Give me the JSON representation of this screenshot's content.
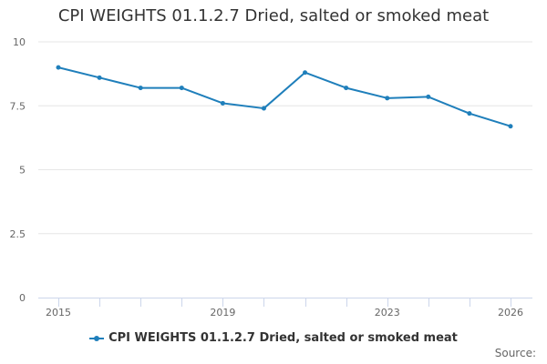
{
  "colors": {
    "series": "#1f7fbb",
    "grid": "#e6e6e6",
    "axis": "#ccd6eb"
  },
  "credits": {
    "label": "Source:"
  },
  "chart_data": {
    "type": "line",
    "title": "CPI WEIGHTS 01.1.2.7 Dried, salted or smoked meat",
    "xlabel": "",
    "ylabel": "",
    "x": [
      2015,
      2016,
      2017,
      2018,
      2019,
      2020,
      2021,
      2022,
      2023,
      2024,
      2025,
      2026
    ],
    "series": [
      {
        "name": "CPI WEIGHTS 01.1.2.7 Dried, salted or smoked meat",
        "values": [
          9.0,
          8.6,
          8.2,
          8.2,
          7.6,
          7.4,
          8.8,
          8.2,
          7.8,
          7.85,
          7.2,
          6.7
        ]
      }
    ],
    "ylim": [
      0,
      10
    ],
    "yticks": [
      0,
      2.5,
      5,
      7.5,
      10
    ],
    "ytick_labels": [
      "0",
      "2.5",
      "5",
      "7.5",
      "10"
    ],
    "xlim": [
      2015,
      2026
    ],
    "xticks_labeled": [
      2015,
      2019,
      2023,
      2026
    ],
    "xtick_labels": [
      "2015",
      "2019",
      "2023",
      "2026"
    ],
    "grid": true,
    "legend": "bottom-center"
  }
}
